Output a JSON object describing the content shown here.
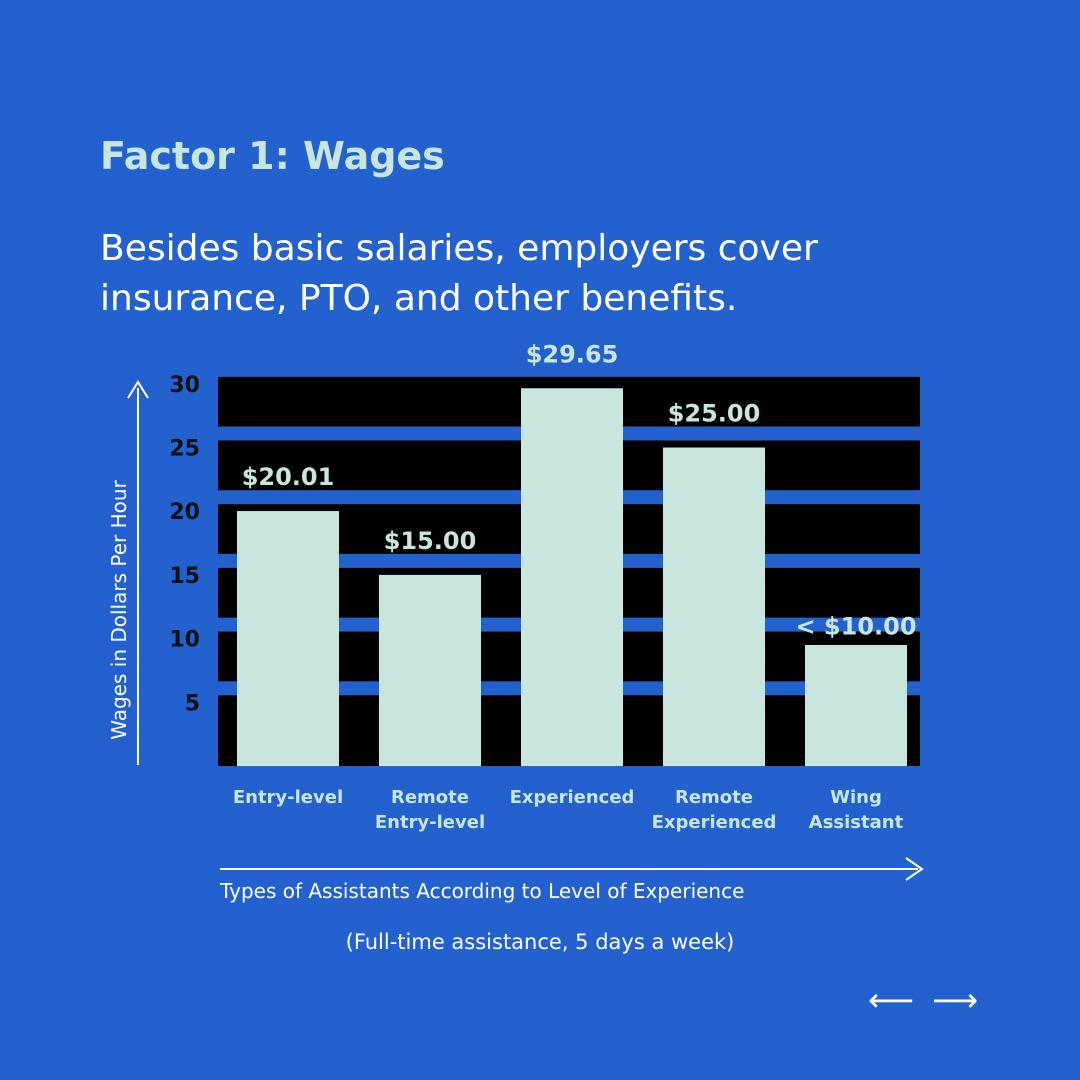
{
  "header": {
    "title": "Factor 1: Wages",
    "subtitle": "Besides basic salaries, employers cover insurance, PTO, and other benefits."
  },
  "chart_data": {
    "type": "bar",
    "categories": [
      [
        "Entry-level"
      ],
      [
        "Remote",
        "Entry-level"
      ],
      [
        "Experienced"
      ],
      [
        "Remote",
        "Experienced"
      ],
      [
        "Wing",
        "Assistant"
      ]
    ],
    "values": [
      20.01,
      15.0,
      29.65,
      25.0,
      9.5
    ],
    "data_labels": [
      "$20.01",
      "$15.00",
      "$29.65",
      "$25.00",
      "< $10.00"
    ],
    "yticks": [
      5,
      10,
      15,
      20,
      25,
      30
    ],
    "ylim": [
      0,
      32
    ],
    "xlabel": "Types of Assistants According to Level of Experience",
    "ylabel": "Wages in Dollars Per Hour",
    "colors": {
      "bar": "#c8e6de",
      "band": "#000000",
      "background": "#2361cf"
    }
  },
  "footer": {
    "note": "(Full-time assistance, 5 days a week)",
    "prev_icon": "arrow-left-icon",
    "next_icon": "arrow-right-icon"
  }
}
